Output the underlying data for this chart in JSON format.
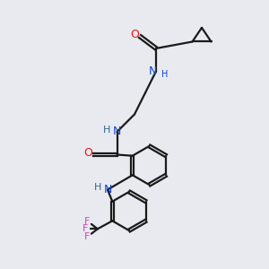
{
  "bg_color": "#e8eaf0",
  "bond_color": "#1a1a1a",
  "oxygen_color": "#ee1111",
  "nitrogen_color": "#1144cc",
  "nitrogen_h_color": "#336688",
  "fluorine_color": "#cc44bb",
  "line_width": 1.6,
  "font_size": 9,
  "fig_size": [
    3.0,
    3.0
  ],
  "dpi": 100,
  "xlim": [
    0,
    10
  ],
  "ylim": [
    0,
    10
  ]
}
